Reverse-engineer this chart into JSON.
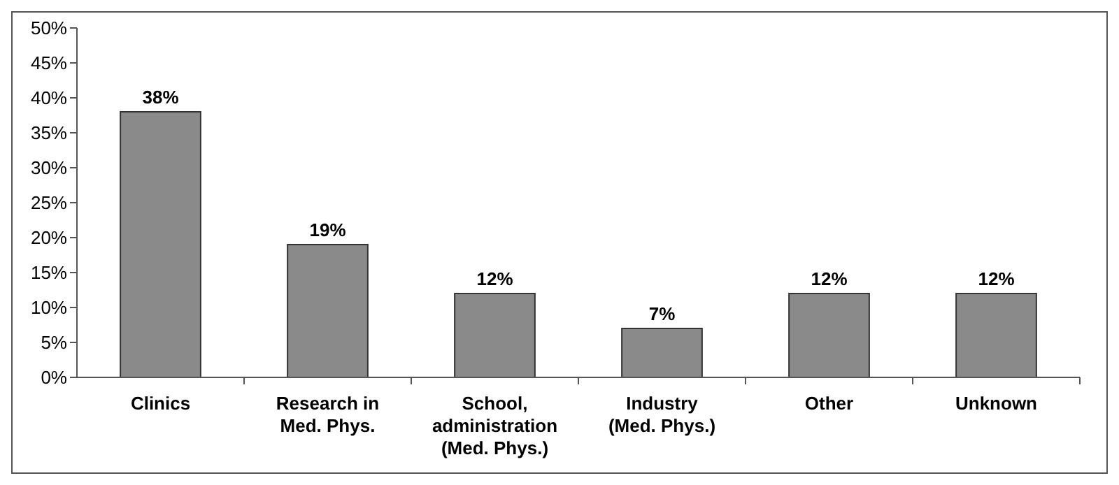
{
  "chart_data": {
    "type": "bar",
    "categories": [
      "Clinics",
      "Research in\nMed. Phys.",
      "School,\nadministration\n(Med. Phys.)",
      "Industry\n(Med. Phys.)",
      "Other",
      "Unknown"
    ],
    "values": [
      38,
      19,
      12,
      7,
      12,
      12
    ],
    "value_labels": [
      "38%",
      "19%",
      "12%",
      "7%",
      "12%",
      "12%"
    ],
    "color": "#8a8a8a",
    "ylim": [
      0,
      50
    ],
    "yticks": [
      {
        "value": 0,
        "label": "0%"
      },
      {
        "value": 5,
        "label": "5%"
      },
      {
        "value": 10,
        "label": "10%"
      },
      {
        "value": 15,
        "label": "15%"
      },
      {
        "value": 20,
        "label": "20%"
      },
      {
        "value": 25,
        "label": "25%"
      },
      {
        "value": 30,
        "label": "30%"
      },
      {
        "value": 35,
        "label": "35%"
      },
      {
        "value": 40,
        "label": "40%"
      },
      {
        "value": 45,
        "label": "45%"
      },
      {
        "value": 50,
        "label": "50%"
      }
    ],
    "grid": false
  }
}
